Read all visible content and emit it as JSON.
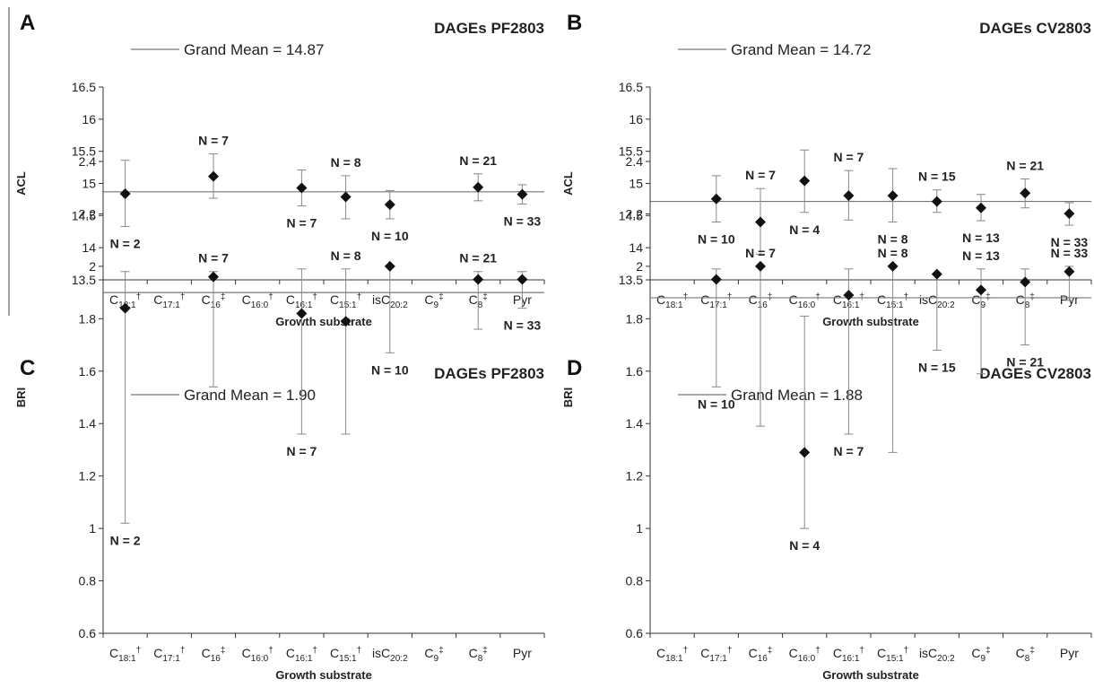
{
  "chart_data": [
    {
      "type": "scatter",
      "panel": "A",
      "title": "DAGEs PF2803",
      "legend_text": "Grand Mean = 14.87",
      "grand_mean": 14.87,
      "ylabel": "ACL",
      "xlabel": "Growth substrate",
      "ylim": [
        13.5,
        16.5
      ],
      "yticks": [
        "13.5",
        "14",
        "14.5",
        "15",
        "15.5",
        "16",
        "16.5"
      ],
      "categories": [
        {
          "base": "C",
          "sub": "18:1",
          "sup": "†"
        },
        {
          "base": "C",
          "sub": "17:1",
          "sup": "†"
        },
        {
          "base": "C",
          "sub": "16",
          "sup": "‡"
        },
        {
          "base": "C",
          "sub": "16:0",
          "sup": "†"
        },
        {
          "base": "C",
          "sub": "16:1",
          "sup": "†"
        },
        {
          "base": "C",
          "sub": "15:1",
          "sup": "†"
        },
        {
          "base": "isC",
          "sub": "20:2",
          "sup": ""
        },
        {
          "base": "C",
          "sub": "9",
          "sup": "‡"
        },
        {
          "base": "C",
          "sub": "8",
          "sup": "‡"
        },
        {
          "base": "Pyr",
          "sub": "",
          "sup": ""
        }
      ],
      "points": [
        {
          "cat": 0,
          "y": 14.84,
          "low": 14.33,
          "high": 15.36,
          "n": "N = 2",
          "pos": "below"
        },
        {
          "cat": 2,
          "y": 15.11,
          "low": 14.77,
          "high": 15.46,
          "n": "N = 7",
          "pos": "above"
        },
        {
          "cat": 4,
          "y": 14.93,
          "low": 14.65,
          "high": 15.21,
          "n": "N = 7",
          "pos": "below"
        },
        {
          "cat": 5,
          "y": 14.79,
          "low": 14.45,
          "high": 15.12,
          "n": "N = 8",
          "pos": "above"
        },
        {
          "cat": 6,
          "y": 14.67,
          "low": 14.45,
          "high": 14.89,
          "n": "N = 10",
          "pos": "below"
        },
        {
          "cat": 8,
          "y": 14.94,
          "low": 14.73,
          "high": 15.15,
          "n": "N = 21",
          "pos": "above"
        },
        {
          "cat": 9,
          "y": 14.83,
          "low": 14.68,
          "high": 14.98,
          "n": "N = 33",
          "pos": "below"
        }
      ]
    },
    {
      "type": "scatter",
      "panel": "B",
      "title": "DAGEs CV2803",
      "legend_text": "Grand Mean = 14.72",
      "grand_mean": 14.72,
      "ylabel": "ACL",
      "xlabel": "Growth substrate",
      "ylim": [
        13.5,
        16.5
      ],
      "yticks": [
        "13.5",
        "14",
        "14.5",
        "15",
        "15.5",
        "16",
        "16.5"
      ],
      "categories": [
        {
          "base": "C",
          "sub": "18:1",
          "sup": "†"
        },
        {
          "base": "C",
          "sub": "17:1",
          "sup": "†"
        },
        {
          "base": "C",
          "sub": "16",
          "sup": "‡"
        },
        {
          "base": "C",
          "sub": "16:0",
          "sup": "†"
        },
        {
          "base": "C",
          "sub": "16:1",
          "sup": "†"
        },
        {
          "base": "C",
          "sub": "15:1",
          "sup": "†"
        },
        {
          "base": "isC",
          "sub": "20:2",
          "sup": ""
        },
        {
          "base": "C",
          "sub": "9",
          "sup": "‡"
        },
        {
          "base": "C",
          "sub": "8",
          "sup": "‡"
        },
        {
          "base": "Pyr",
          "sub": "",
          "sup": ""
        }
      ],
      "points": [
        {
          "cat": 1,
          "y": 14.76,
          "low": 14.4,
          "high": 15.12,
          "n": "N = 10",
          "pos": "below"
        },
        {
          "cat": 2,
          "y": 14.4,
          "low": 13.9,
          "high": 14.92,
          "n": "N = 7",
          "pos": "above"
        },
        {
          "cat": 3,
          "y": 15.04,
          "low": 14.55,
          "high": 15.52,
          "n": "N = 4",
          "pos": "below"
        },
        {
          "cat": 4,
          "y": 14.81,
          "low": 14.43,
          "high": 15.2,
          "n": "N = 7",
          "pos": "above"
        },
        {
          "cat": 5,
          "y": 14.81,
          "low": 14.4,
          "high": 15.23,
          "n": "N = 8",
          "pos": "below"
        },
        {
          "cat": 6,
          "y": 14.72,
          "low": 14.55,
          "high": 14.9,
          "n": "N = 15",
          "pos": "above"
        },
        {
          "cat": 7,
          "y": 14.62,
          "low": 14.42,
          "high": 14.83,
          "n": "N = 13",
          "pos": "below"
        },
        {
          "cat": 8,
          "y": 14.85,
          "low": 14.62,
          "high": 15.07,
          "n": "N = 21",
          "pos": "above"
        },
        {
          "cat": 9,
          "y": 14.53,
          "low": 14.35,
          "high": 14.7,
          "n": "N = 33",
          "pos": "below"
        }
      ]
    },
    {
      "type": "scatter",
      "panel": "C",
      "title": "DAGEs PF2803",
      "legend_text": "Grand Mean = 1.90",
      "grand_mean": 1.9,
      "ylabel": "BRI",
      "xlabel": "Growth substrate",
      "ylim": [
        0.6,
        2.4
      ],
      "yticks": [
        "0.6",
        "0.8",
        "1",
        "1.2",
        "1.4",
        "1.6",
        "1.8",
        "2",
        "2.2",
        "2.4"
      ],
      "categories": [
        {
          "base": "C",
          "sub": "18:1",
          "sup": "†"
        },
        {
          "base": "C",
          "sub": "17:1",
          "sup": "†"
        },
        {
          "base": "C",
          "sub": "16",
          "sup": "‡"
        },
        {
          "base": "C",
          "sub": "16:0",
          "sup": "†"
        },
        {
          "base": "C",
          "sub": "16:1",
          "sup": "†"
        },
        {
          "base": "C",
          "sub": "15:1",
          "sup": "†"
        },
        {
          "base": "isC",
          "sub": "20:2",
          "sup": ""
        },
        {
          "base": "C",
          "sub": "9",
          "sup": "‡"
        },
        {
          "base": "C",
          "sub": "8",
          "sup": "‡"
        },
        {
          "base": "Pyr",
          "sub": "",
          "sup": ""
        }
      ],
      "points": [
        {
          "cat": 0,
          "y": 1.84,
          "low": 1.02,
          "high": 1.98,
          "n": "N = 2",
          "pos": "below"
        },
        {
          "cat": 2,
          "y": 1.96,
          "low": 1.54,
          "high": 1.98,
          "n": "N = 7",
          "pos": "above"
        },
        {
          "cat": 4,
          "y": 1.82,
          "low": 1.36,
          "high": 1.99,
          "n": "N = 7",
          "pos": "below"
        },
        {
          "cat": 5,
          "y": 1.79,
          "low": 1.36,
          "high": 1.99,
          "n": "N = 8",
          "pos": "above"
        },
        {
          "cat": 6,
          "y": 2.0,
          "low": 1.67,
          "high": 2.0,
          "n": "N = 10",
          "pos": "below"
        },
        {
          "cat": 8,
          "y": 1.95,
          "low": 1.76,
          "high": 1.98,
          "n": "N = 21",
          "pos": "above"
        },
        {
          "cat": 9,
          "y": 1.95,
          "low": 1.84,
          "high": 1.98,
          "n": "N = 33",
          "pos": "below"
        }
      ]
    },
    {
      "type": "scatter",
      "panel": "D",
      "title": "DAGEs CV2803",
      "legend_text": "Grand Mean = 1.88",
      "grand_mean": 1.88,
      "ylabel": "BRI",
      "xlabel": "Growth substrate",
      "ylim": [
        0.6,
        2.4
      ],
      "yticks": [
        "0.6",
        "0.8",
        "1",
        "1.2",
        "1.4",
        "1.6",
        "1.8",
        "2",
        "2.2",
        "2.4"
      ],
      "categories": [
        {
          "base": "C",
          "sub": "18:1",
          "sup": "†"
        },
        {
          "base": "C",
          "sub": "17:1",
          "sup": "†"
        },
        {
          "base": "C",
          "sub": "16",
          "sup": "‡"
        },
        {
          "base": "C",
          "sub": "16:0",
          "sup": "†"
        },
        {
          "base": "C",
          "sub": "16:1",
          "sup": "†"
        },
        {
          "base": "C",
          "sub": "15:1",
          "sup": "†"
        },
        {
          "base": "isC",
          "sub": "20:2",
          "sup": ""
        },
        {
          "base": "C",
          "sub": "9",
          "sup": "‡"
        },
        {
          "base": "C",
          "sub": "8",
          "sup": "‡"
        },
        {
          "base": "Pyr",
          "sub": "",
          "sup": ""
        }
      ],
      "points": [
        {
          "cat": 1,
          "y": 1.95,
          "low": 1.54,
          "high": 1.99,
          "n": "N = 10",
          "pos": "below"
        },
        {
          "cat": 2,
          "y": 2.0,
          "low": 1.39,
          "high": 2.0,
          "n": "N = 7",
          "pos": "above"
        },
        {
          "cat": 3,
          "y": 1.29,
          "low": 1.0,
          "high": 1.81,
          "n": "N = 4",
          "pos": "below"
        },
        {
          "cat": 4,
          "y": 1.89,
          "low": 1.36,
          "high": 1.99,
          "n": "N = 7",
          "pos": "below"
        },
        {
          "cat": 5,
          "y": 2.0,
          "low": 1.29,
          "high": 2.0,
          "n": "N = 8",
          "pos": "above"
        },
        {
          "cat": 6,
          "y": 1.97,
          "low": 1.68,
          "high": 1.97,
          "n": "N = 15",
          "pos": "below"
        },
        {
          "cat": 7,
          "y": 1.91,
          "low": 1.59,
          "high": 1.99,
          "n": "N = 13",
          "pos": "above"
        },
        {
          "cat": 8,
          "y": 1.94,
          "low": 1.7,
          "high": 1.99,
          "n": "N = 21",
          "pos": "below"
        },
        {
          "cat": 9,
          "y": 1.98,
          "low": 1.87,
          "high": 2.0,
          "n": "N = 33",
          "pos": "above"
        }
      ]
    }
  ]
}
